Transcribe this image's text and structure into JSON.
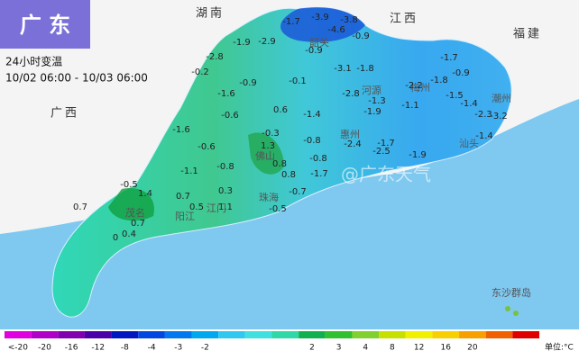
{
  "header": {
    "title": "广 东",
    "subtitle": "24小时变温",
    "period": "10/02 06:00 - 10/03 06:00"
  },
  "provinces": [
    "湖南",
    "江西",
    "福建",
    "广西"
  ],
  "cities": [
    "韶关",
    "河源",
    "梅州",
    "潮州",
    "汕头",
    "惠州",
    "佛山",
    "珠海",
    "江门",
    "阳江",
    "茂名",
    "东沙群岛"
  ],
  "station_values": [
    -1.7,
    -3.9,
    -3.8,
    -4.6,
    -0.9,
    -1.9,
    -2.9,
    -0.9,
    -2.8,
    -3.1,
    -1.8,
    -1.3,
    -2.2,
    -1.7,
    -0.9,
    -1.8,
    -0.2,
    -0.9,
    -0.1,
    -1.6,
    -2.8,
    -1.9,
    -1.1,
    -1.5,
    -1.4,
    -2.3,
    -3.2,
    0.6,
    -1.4,
    -0.6,
    -0.3,
    -0.8,
    -1.7,
    -1.6,
    -0.6,
    -0.8,
    -1.1,
    0.3,
    0.8,
    0.8,
    1.3,
    -0.8,
    -2.5,
    -1.9,
    -2.4,
    -1.4,
    -0.5,
    1.4,
    0.7,
    0.5,
    1.1,
    -0.7,
    -0.5,
    -1.7,
    0.7,
    0.7,
    0,
    0.4
  ],
  "legend": {
    "labels": [
      "<-20",
      -20,
      -16,
      -12,
      -8,
      -4,
      -3,
      -2,
      2,
      3,
      4,
      8,
      12,
      16,
      20
    ],
    "colors": [
      "#e000e0",
      "#b000c8",
      "#8000b0",
      "#4a00a8",
      "#0018c0",
      "#0048e0",
      "#0078f0",
      "#00a8f0",
      "#30c8f0",
      "#40e0e0",
      "#30d8a8",
      "#10b050",
      "#30c030",
      "#80d030",
      "#c8e000",
      "#f0f000",
      "#f8d000",
      "#f8a000",
      "#f06000",
      "#e00000"
    ],
    "unit": "单位:°C"
  },
  "watermark": "@广东天气"
}
